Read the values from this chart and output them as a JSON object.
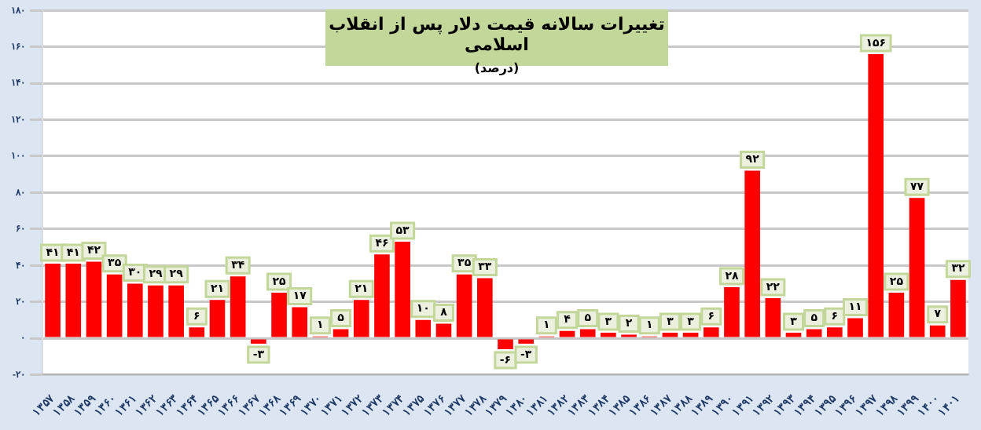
{
  "chart_data": {
    "type": "bar",
    "title": "تغییرات سالانه قیمت دلار پس از انقلاب اسلامی",
    "subtitle": "(درصد)",
    "categories": [
      "۱۳۵۷",
      "۱۳۵۸",
      "۱۳۵۹",
      "۱۳۶۰",
      "۱۳۶۱",
      "۱۳۶۲",
      "۱۳۶۳",
      "۱۳۶۴",
      "۱۳۶۵",
      "۱۳۶۶",
      "۱۳۶۷",
      "۱۳۶۸",
      "۱۳۶۹",
      "۱۳۷۰",
      "۱۳۷۱",
      "۱۳۷۲",
      "۱۳۷۳",
      "۱۳۷۴",
      "۱۳۷۵",
      "۱۳۷۶",
      "۱۳۷۷",
      "۱۳۷۸",
      "۱۳۷۹",
      "۱۳۸۰",
      "۱۳۸۱",
      "۱۳۸۲",
      "۱۳۸۳",
      "۱۳۸۴",
      "۱۳۸۵",
      "۱۳۸۶",
      "۱۳۸۷",
      "۱۳۸۸",
      "۱۳۸۹",
      "۱۳۹۰",
      "۱۳۹۱",
      "۱۳۹۲",
      "۱۳۹۳",
      "۱۳۹۴",
      "۱۳۹۵",
      "۱۳۹۶",
      "۱۳۹۷",
      "۱۳۹۸",
      "۱۳۹۹",
      "۱۴۰۰",
      "۱۴۰۱"
    ],
    "values": [
      41,
      41,
      42,
      35,
      30,
      29,
      29,
      6,
      21,
      34,
      -3,
      25,
      17,
      1,
      5,
      21,
      46,
      53,
      10,
      8,
      35,
      33,
      -6,
      -3,
      1,
      4,
      5,
      3,
      2,
      1,
      3,
      3,
      6,
      28,
      92,
      22,
      3,
      5,
      6,
      11,
      156,
      25,
      77,
      7,
      32
    ],
    "value_labels": [
      "۴۱",
      "۴۱",
      "۴۲",
      "۳۵",
      "۳۰",
      "۲۹",
      "۲۹",
      "۶",
      "۲۱",
      "۳۴",
      "-۳",
      "۲۵",
      "۱۷",
      "۱",
      "۵",
      "۲۱",
      "۴۶",
      "۵۳",
      "۱۰",
      "۸",
      "۳۵",
      "۳۳",
      "-۶",
      "-۳",
      "۱",
      "۴",
      "۵",
      "۳",
      "۲",
      "۱",
      "۳",
      "۳",
      "۶",
      "۲۸",
      "۹۲",
      "۲۲",
      "۳",
      "۵",
      "۶",
      "۱۱",
      "۱۵۶",
      "۲۵",
      "۷۷",
      "۷",
      "۳۲"
    ],
    "color": "#ff0000",
    "ylim": [
      -20,
      180
    ],
    "yticks": [
      {
        "value": -20,
        "label": "-۲۰"
      },
      {
        "value": 0,
        "label": "۰"
      },
      {
        "value": 20,
        "label": "۲۰"
      },
      {
        "value": 40,
        "label": "۴۰"
      },
      {
        "value": 60,
        "label": "۶۰"
      },
      {
        "value": 80,
        "label": "۸۰"
      },
      {
        "value": 100,
        "label": "۱۰۰"
      },
      {
        "value": 120,
        "label": "۱۲۰"
      },
      {
        "value": 140,
        "label": "۱۴۰"
      },
      {
        "value": 160,
        "label": "۱۶۰"
      },
      {
        "value": 180,
        "label": "۱۸۰"
      }
    ],
    "grid": "y",
    "legend": false
  }
}
